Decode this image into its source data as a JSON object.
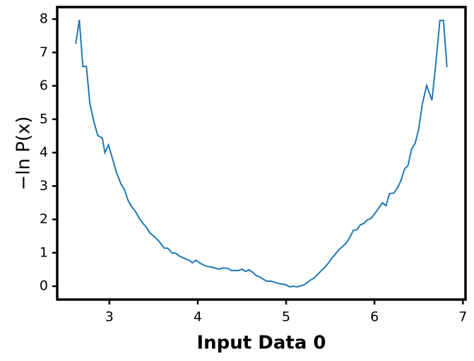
{
  "chart_data": {
    "type": "line",
    "x_label": "Input Data 0",
    "y_label": "−ln P(x)",
    "color": "#1f77b4",
    "xlim": [
      2.41,
      7.03
    ],
    "ylim": [
      -0.4,
      8.36
    ],
    "xticks": [
      3,
      4,
      5,
      6,
      7
    ],
    "yticks": [
      0,
      1,
      2,
      3,
      4,
      5,
      6,
      7,
      8
    ],
    "x": [
      2.62,
      2.66,
      2.7,
      2.74,
      2.78,
      2.83,
      2.87,
      2.92,
      2.95,
      2.99,
      3.03,
      3.08,
      3.13,
      3.17,
      3.21,
      3.25,
      3.29,
      3.34,
      3.38,
      3.42,
      3.46,
      3.51,
      3.56,
      3.62,
      3.66,
      3.71,
      3.75,
      3.8,
      3.85,
      3.9,
      3.94,
      3.98,
      4.02,
      4.07,
      4.11,
      4.16,
      4.21,
      4.24,
      4.29,
      4.34,
      4.38,
      4.42,
      4.46,
      4.5,
      4.54,
      4.58,
      4.62,
      4.66,
      4.7,
      4.74,
      4.78,
      4.83,
      4.88,
      4.92,
      4.96,
      5.0,
      5.04,
      5.08,
      5.12,
      5.16,
      5.2,
      5.24,
      5.28,
      5.32,
      5.36,
      5.4,
      5.44,
      5.48,
      5.52,
      5.56,
      5.6,
      5.64,
      5.68,
      5.72,
      5.76,
      5.8,
      5.84,
      5.88,
      5.92,
      5.96,
      6.0,
      6.04,
      6.09,
      6.13,
      6.17,
      6.22,
      6.26,
      6.3,
      6.34,
      6.38,
      6.42,
      6.46,
      6.5,
      6.54,
      6.59,
      6.65,
      6.69,
      6.74,
      6.78,
      6.82
    ],
    "values": [
      7.26,
      7.98,
      6.58,
      6.58,
      5.46,
      4.87,
      4.51,
      4.44,
      4.0,
      4.23,
      3.87,
      3.41,
      3.07,
      2.9,
      2.58,
      2.39,
      2.26,
      2.03,
      1.88,
      1.76,
      1.59,
      1.48,
      1.35,
      1.14,
      1.14,
      0.99,
      0.99,
      0.89,
      0.83,
      0.78,
      0.7,
      0.78,
      0.7,
      0.63,
      0.59,
      0.57,
      0.53,
      0.51,
      0.55,
      0.53,
      0.47,
      0.47,
      0.47,
      0.51,
      0.44,
      0.49,
      0.42,
      0.32,
      0.28,
      0.21,
      0.15,
      0.15,
      0.11,
      0.08,
      0.06,
      0.04,
      -0.02,
      0.0,
      -0.02,
      0.0,
      0.04,
      0.11,
      0.19,
      0.25,
      0.36,
      0.47,
      0.57,
      0.7,
      0.85,
      0.97,
      1.1,
      1.19,
      1.29,
      1.46,
      1.67,
      1.69,
      1.84,
      1.88,
      1.99,
      2.03,
      2.16,
      2.31,
      2.5,
      2.41,
      2.77,
      2.79,
      2.94,
      3.17,
      3.51,
      3.62,
      4.11,
      4.28,
      4.7,
      5.44,
      6.01,
      5.57,
      6.56,
      7.96,
      7.96,
      6.56
    ]
  }
}
